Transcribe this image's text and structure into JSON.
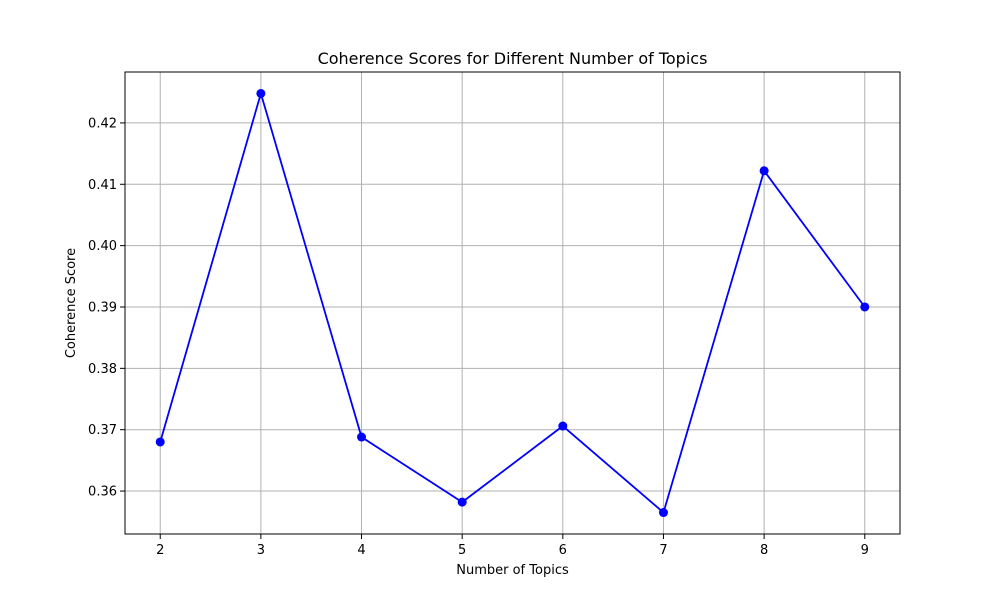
{
  "chart_data": {
    "type": "line",
    "title": "Coherence Scores for Different Number of Topics",
    "xlabel": "Number of Topics",
    "ylabel": "Coherence Score",
    "x": [
      2,
      3,
      4,
      5,
      6,
      7,
      8,
      9
    ],
    "series": [
      {
        "values": [
          0.368,
          0.4248,
          0.3688,
          0.3582,
          0.3706,
          0.3565,
          0.4122,
          0.39
        ],
        "color": "#0000ff",
        "marker": "circle"
      }
    ],
    "xticks": [
      "2",
      "3",
      "4",
      "5",
      "6",
      "7",
      "8",
      "9"
    ],
    "yticks": [
      "0.36",
      "0.37",
      "0.38",
      "0.39",
      "0.40",
      "0.41",
      "0.42"
    ],
    "xlim": [
      1.65,
      9.35
    ],
    "ylim": [
      0.353,
      0.4283
    ],
    "grid": true,
    "grid_color": "#b0b0b0"
  }
}
